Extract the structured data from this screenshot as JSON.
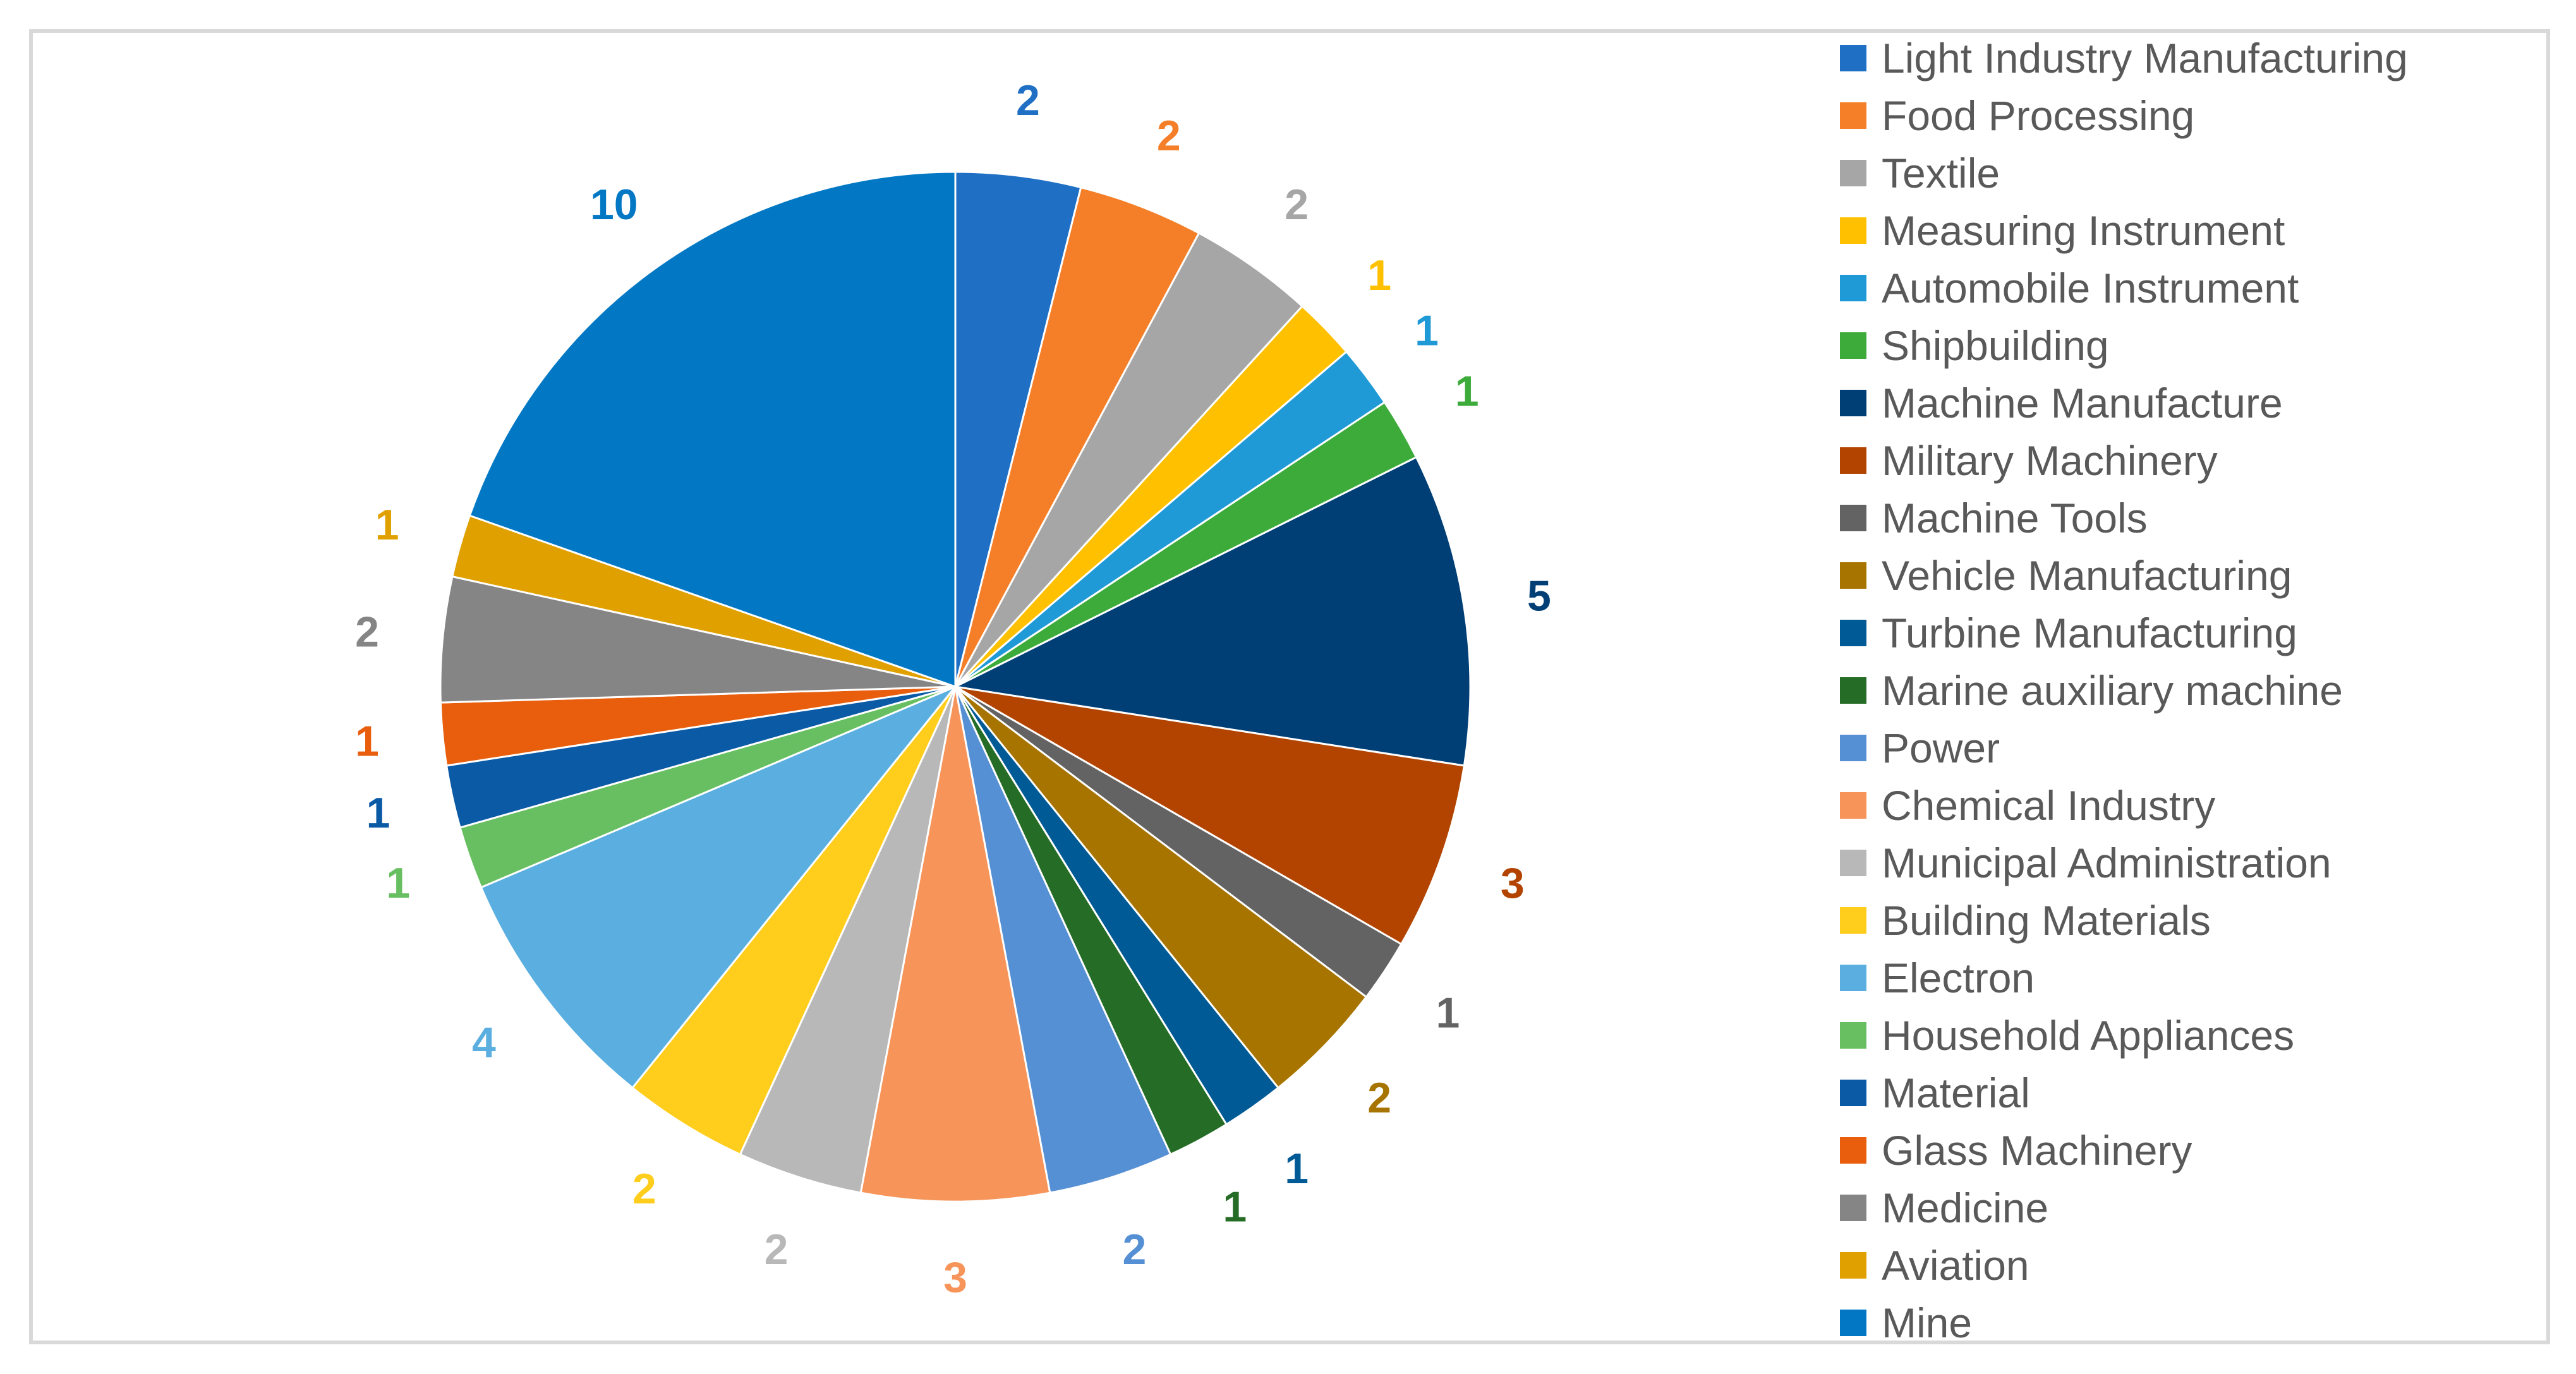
{
  "chart_data": {
    "type": "pie",
    "title": "",
    "start_angle_deg": 0,
    "direction": "clockwise",
    "categories": [
      "Light Industry Manufacturing",
      "Food Processing",
      "Textile",
      "Measuring Instrument",
      "Automobile Instrument",
      "Shipbuilding",
      "Machine Manufacture",
      "Military Machinery",
      "Machine Tools",
      "Vehicle Manufacturing",
      "Turbine Manufacturing",
      "Marine auxiliary machine",
      "Power",
      "Chemical Industry",
      "Municipal Administration",
      "Building Materials",
      "Electron",
      "Household Appliances",
      "Material",
      "Glass Machinery",
      "Medicine",
      "Aviation",
      "Mine"
    ],
    "values": [
      2,
      2,
      2,
      1,
      1,
      1,
      5,
      3,
      1,
      2,
      1,
      1,
      2,
      3,
      2,
      2,
      4,
      1,
      1,
      1,
      2,
      1,
      10
    ],
    "colors": [
      "#1f6fc5",
      "#f57f28",
      "#a6a6a6",
      "#ffc000",
      "#1f9ad6",
      "#3cab3a",
      "#003f75",
      "#b24400",
      "#636363",
      "#a87400",
      "#005a96",
      "#256c26",
      "#5690d4",
      "#f7945a",
      "#b8b8b8",
      "#ffcd1c",
      "#5aafe0",
      "#67bf61",
      "#0b5aa6",
      "#e85e0c",
      "#858585",
      "#e0a000",
      "#0278c4"
    ],
    "data_labels": true,
    "legend": {
      "position": "right"
    }
  }
}
